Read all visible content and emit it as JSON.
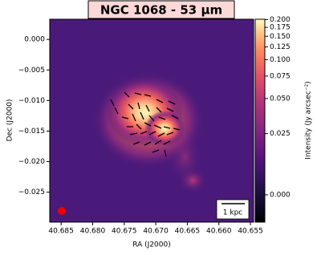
{
  "chart_data": {
    "type": "image",
    "title": "NGC 1068 - 53 μm",
    "x_label": "RA (J2000)",
    "y_label": "Dec (J2000)",
    "colorbar_label": "Intensity (Jy arcsec⁻²)",
    "scale_bar_label": "1 kpc",
    "colormap": "magma",
    "color_stretch": "asinh",
    "xlim": [
      40.6868,
      40.6545
    ],
    "xticks": [
      {
        "value": 40.685,
        "label": "40.685"
      },
      {
        "value": 40.68,
        "label": "40.680"
      },
      {
        "value": 40.675,
        "label": "40.675"
      },
      {
        "value": 40.67,
        "label": "40.670"
      },
      {
        "value": 40.665,
        "label": "40.665"
      },
      {
        "value": 40.66,
        "label": "40.660"
      },
      {
        "value": 40.655,
        "label": "40.655"
      }
    ],
    "ylim": [
      -0.0299,
      0.0033
    ],
    "yticks": [
      {
        "value": 0,
        "label": "0.000"
      },
      {
        "value": -0.005,
        "label": "−0.005"
      },
      {
        "value": -0.01,
        "label": "−0.010"
      },
      {
        "value": -0.015,
        "label": "−0.015"
      },
      {
        "value": -0.02,
        "label": "−0.020"
      },
      {
        "value": -0.025,
        "label": "−0.025"
      }
    ],
    "clim": [
      -0.0097,
      0.2013
    ],
    "cticks": [
      {
        "value": 0.2,
        "label": "0.200"
      },
      {
        "value": 0.175,
        "label": "0.175"
      },
      {
        "value": 0.15,
        "label": "0.150"
      },
      {
        "value": 0.125,
        "label": "0.125"
      },
      {
        "value": 0.1,
        "label": "0.100"
      },
      {
        "value": 0.075,
        "label": "0.075"
      },
      {
        "value": 0.05,
        "label": "0.050"
      },
      {
        "value": 0.025,
        "label": "0.025"
      },
      {
        "value": 0,
        "label": "0.000"
      }
    ]
  }
}
